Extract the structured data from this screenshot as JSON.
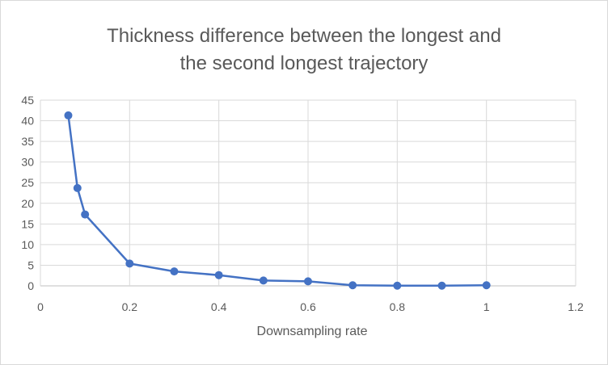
{
  "chart_data": {
    "type": "line",
    "title": [
      "Thickness difference between the longest and",
      "the second longest trajectory"
    ],
    "xlabel": "Downsampling rate",
    "ylabel": "",
    "xlim": [
      0,
      1.2
    ],
    "ylim": [
      0,
      45
    ],
    "x_ticks": [
      "0",
      "0.2",
      "0.4",
      "0.6",
      "0.8",
      "1",
      "1.2"
    ],
    "x_tick_values": [
      0,
      0.2,
      0.4,
      0.6,
      0.8,
      1,
      1.2
    ],
    "y_ticks": [
      "0",
      "5",
      "10",
      "15",
      "20",
      "25",
      "30",
      "35",
      "40",
      "45"
    ],
    "y_tick_values": [
      0,
      5,
      10,
      15,
      20,
      25,
      30,
      35,
      40,
      45
    ],
    "grid": true,
    "legend": "none",
    "series": [
      {
        "color": "#4472c4",
        "x": [
          0.0625,
          0.083,
          0.1,
          0.2,
          0.3,
          0.4,
          0.5,
          0.6,
          0.7,
          0.8,
          0.9,
          1.0
        ],
        "values": [
          41.3,
          23.7,
          17.3,
          5.4,
          3.5,
          2.6,
          1.3,
          1.1,
          0.15,
          0.05,
          0.05,
          0.15
        ]
      }
    ]
  }
}
